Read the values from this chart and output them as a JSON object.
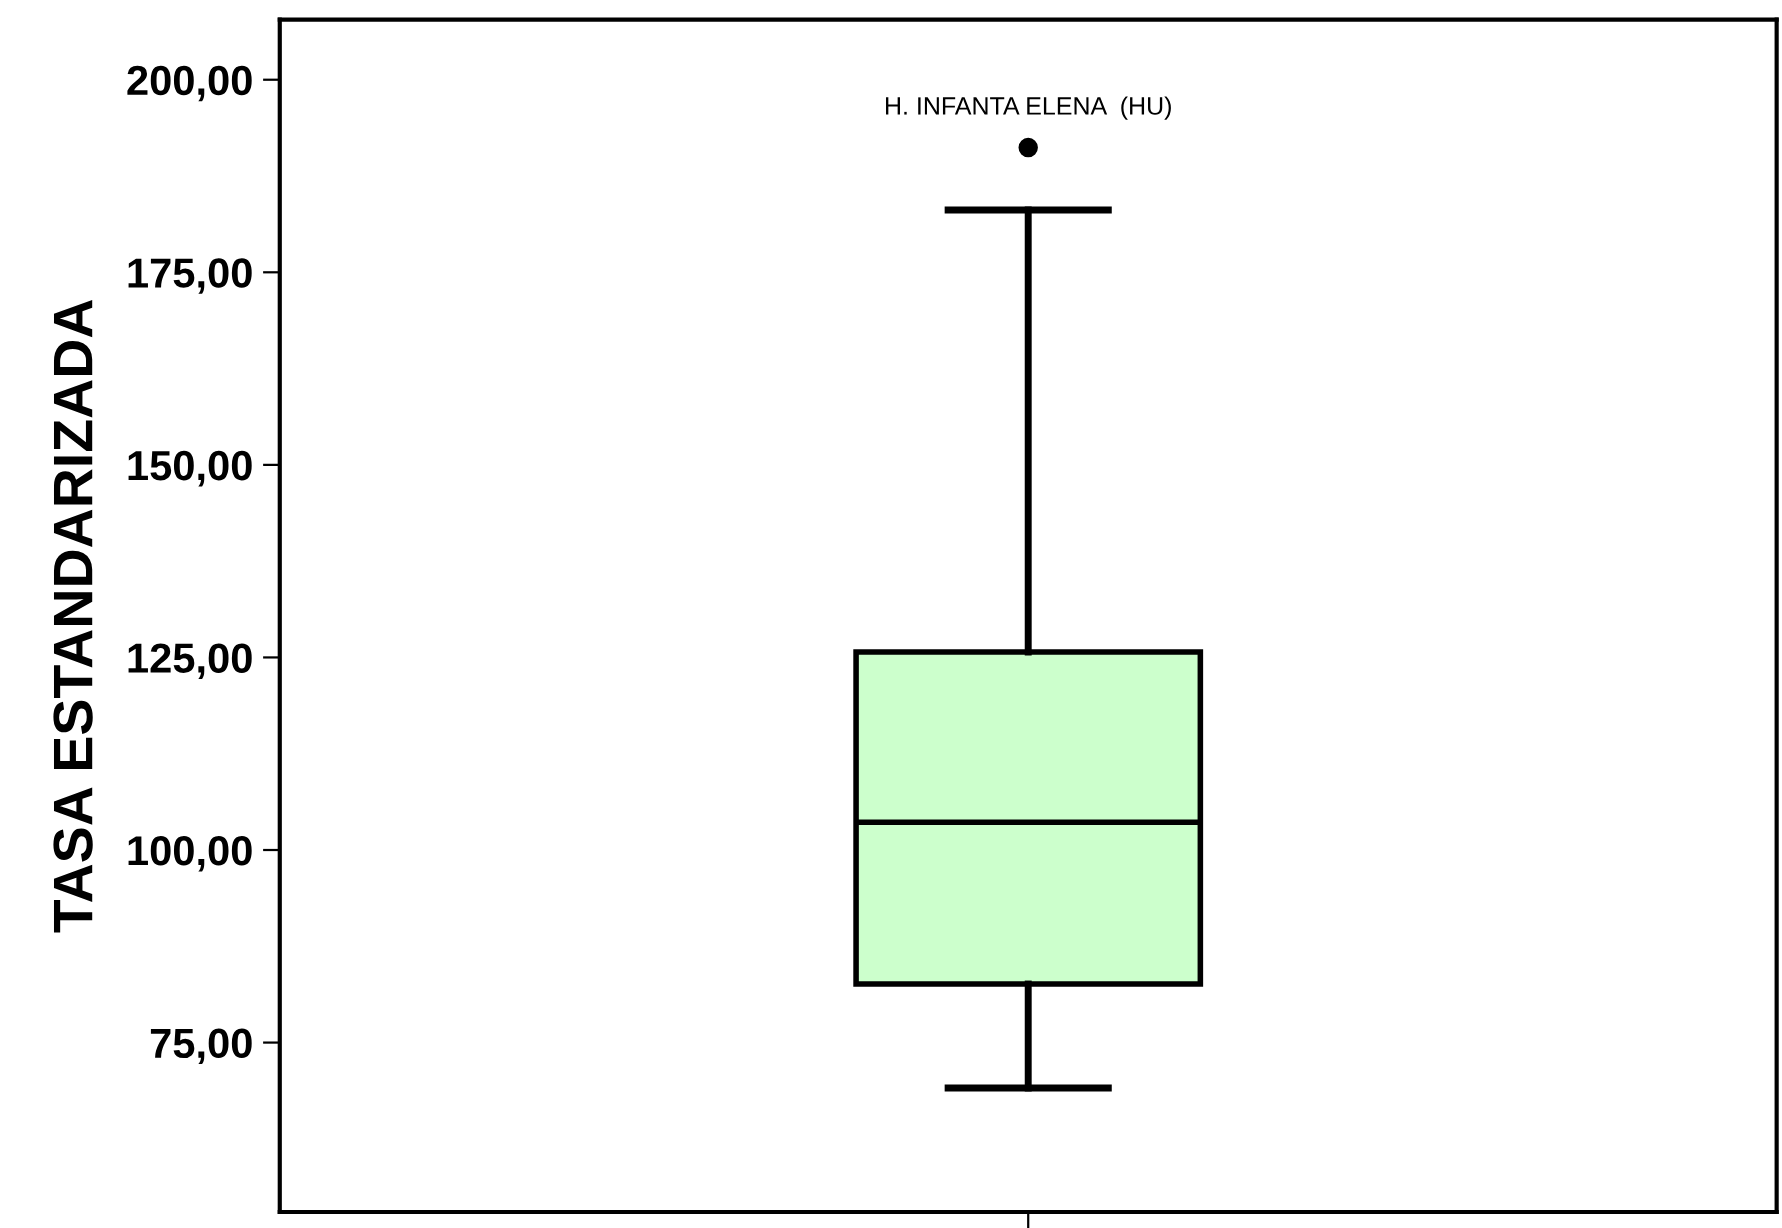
{
  "chart_data": {
    "type": "box",
    "ylabel": "TASA ESTANDARIZADA",
    "categories": [
      null
    ],
    "boxes": [
      {
        "low": 69.1,
        "q1": 82.6,
        "median": 103.6,
        "q3": 125.7,
        "high": 183.1,
        "outliers": [
          191.2
        ]
      }
    ],
    "color": "#ccffcc",
    "ylim": [
      53,
      207.8
    ],
    "yticks": [
      {
        "value": 75,
        "label": "75,00"
      },
      {
        "value": 100,
        "label": "100,00"
      },
      {
        "value": 125,
        "label": "125,00"
      },
      {
        "value": 150,
        "label": "150,00"
      },
      {
        "value": 175,
        "label": "175,00"
      },
      {
        "value": 200,
        "label": "200,00"
      }
    ],
    "annotations": [
      "H. INFANTA ELENA  (HU)"
    ],
    "grid": false
  }
}
